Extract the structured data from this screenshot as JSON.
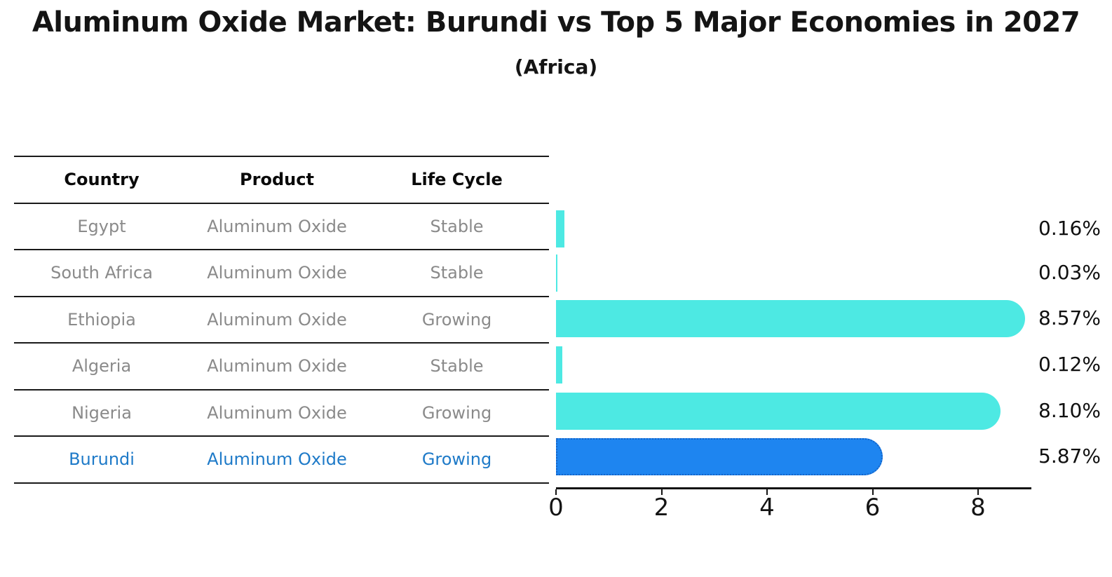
{
  "title": "Aluminum Oxide Market: Burundi vs Top 5 Major Economies in 2027",
  "subtitle": "(Africa)",
  "table": {
    "columns": [
      "Country",
      "Product",
      "Life Cycle"
    ],
    "column_keys": [
      "country",
      "product",
      "life-cycle"
    ],
    "rows": [
      {
        "country": "Egypt",
        "product": "Aluminum Oxide",
        "life_cycle": "Stable",
        "highlight": false
      },
      {
        "country": "South Africa",
        "product": "Aluminum Oxide",
        "life_cycle": "Stable",
        "highlight": false
      },
      {
        "country": "Ethiopia",
        "product": "Aluminum Oxide",
        "life_cycle": "Growing",
        "highlight": false
      },
      {
        "country": "Algeria",
        "product": "Aluminum Oxide",
        "life_cycle": "Stable",
        "highlight": false
      },
      {
        "country": "Nigeria",
        "product": "Aluminum Oxide",
        "life_cycle": "Growing",
        "highlight": false
      },
      {
        "country": "Burundi",
        "product": "Aluminum Oxide",
        "life_cycle": "Growing",
        "highlight": true
      }
    ]
  },
  "chart_data": {
    "type": "bar",
    "orientation": "horizontal",
    "title": "Aluminum Oxide Market: Burundi vs Top 5 Major Economies in 2027 (Africa)",
    "categories": [
      "Egypt",
      "South Africa",
      "Ethiopia",
      "Algeria",
      "Nigeria",
      "Burundi"
    ],
    "values": [
      0.16,
      0.03,
      8.57,
      0.12,
      8.1,
      5.87
    ],
    "value_labels": [
      "0.16%",
      "0.03%",
      "8.57%",
      "0.12%",
      "8.10%",
      "5.87%"
    ],
    "highlight_index": 5,
    "xlabel": "",
    "ylabel": "",
    "xlim": [
      0,
      9
    ],
    "xticks": [
      0,
      2,
      4,
      6,
      8
    ],
    "xtick_labels": [
      "0",
      "2",
      "4",
      "6",
      "8"
    ],
    "grid": false,
    "legend": false,
    "colors": {
      "default_bar": "#4DE9E3",
      "highlight_bar": "#1E85F0",
      "highlight_border": "#1464C8",
      "highlight_text": "#1E7AC8",
      "row_text": "#8A8A8A",
      "header_text": "#0a0a0a",
      "axis": "#141414"
    }
  }
}
